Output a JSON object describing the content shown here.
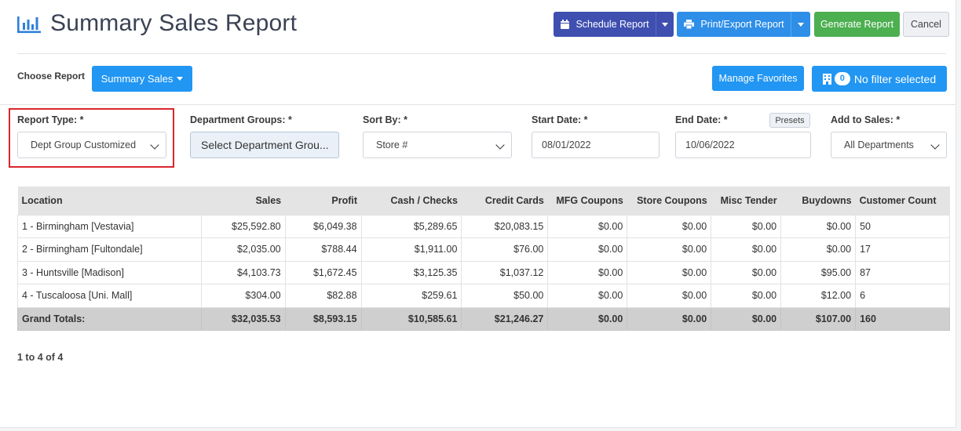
{
  "header": {
    "title": "Summary Sales Report",
    "title_icon": "bar-chart-icon",
    "buttons": {
      "schedule": "Schedule Report",
      "print_export": "Print/Export Report",
      "generate": "Generate Report",
      "cancel": "Cancel"
    }
  },
  "report_bar": {
    "choose_label": "Choose Report",
    "report_dropdown": "Summary Sales",
    "manage_favorites": "Manage Favorites",
    "filter_count": "0",
    "filter_text": "No filter selected"
  },
  "filters": {
    "report_type": {
      "label": "Report Type: *",
      "value": "Dept Group Customized"
    },
    "department_groups": {
      "label": "Department Groups: *",
      "value": "Select Department Grou..."
    },
    "sort_by": {
      "label": "Sort By: *",
      "value": "Store #"
    },
    "start_date": {
      "label": "Start Date: *",
      "value": "08/01/2022"
    },
    "end_date": {
      "label": "End Date: *",
      "value": "10/06/2022",
      "presets": "Presets"
    },
    "add_to_sales": {
      "label": "Add to Sales: *",
      "value": "All Departments"
    }
  },
  "table": {
    "columns": [
      "Location",
      "Sales",
      "Profit",
      "Cash / Checks",
      "Credit Cards",
      "MFG Coupons",
      "Store Coupons",
      "Misc Tender",
      "Buydowns",
      "Customer Count"
    ],
    "rows": [
      [
        "1 - Birmingham [Vestavia]",
        "$25,592.80",
        "$6,049.38",
        "$5,289.65",
        "$20,083.15",
        "$0.00",
        "$0.00",
        "$0.00",
        "$0.00",
        "50"
      ],
      [
        "2 - Birmingham [Fultondale]",
        "$2,035.00",
        "$788.44",
        "$1,911.00",
        "$76.00",
        "$0.00",
        "$0.00",
        "$0.00",
        "$0.00",
        "17"
      ],
      [
        "3 - Huntsville [Madison]",
        "$4,103.73",
        "$1,672.45",
        "$3,125.35",
        "$1,037.12",
        "$0.00",
        "$0.00",
        "$0.00",
        "$95.00",
        "87"
      ],
      [
        "4 - Tuscaloosa [Uni. Mall]",
        "$304.00",
        "$82.88",
        "$259.61",
        "$50.00",
        "$0.00",
        "$0.00",
        "$0.00",
        "$12.00",
        "6"
      ]
    ],
    "totals": [
      "Grand Totals:",
      "$32,035.53",
      "$8,593.15",
      "$10,585.61",
      "$21,246.27",
      "$0.00",
      "$0.00",
      "$0.00",
      "$107.00",
      "160"
    ]
  },
  "pagination": "1 to 4 of 4",
  "colors": {
    "schedule": "#3f4fb0",
    "primary": "#2196f3",
    "generate": "#4caf50",
    "highlight": "#d9252b"
  }
}
